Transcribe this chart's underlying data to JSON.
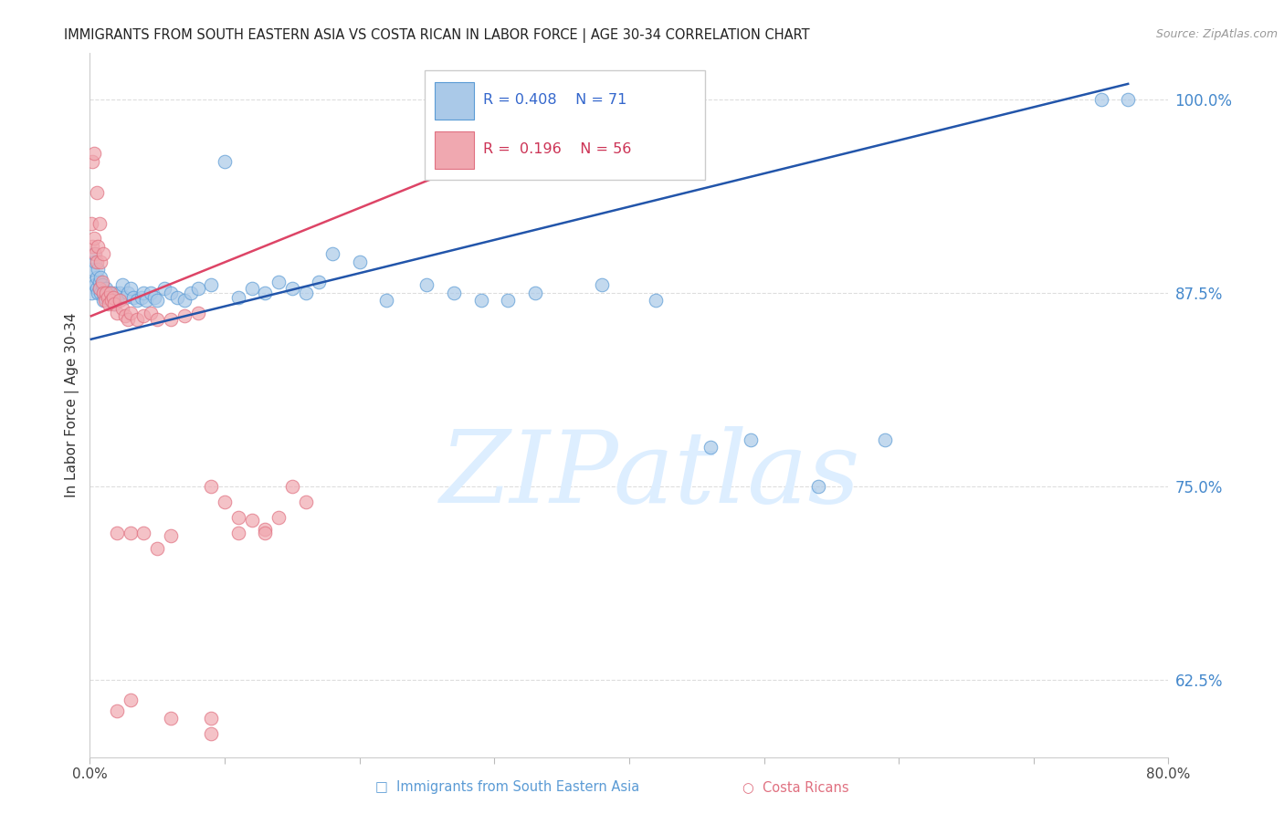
{
  "title": "IMMIGRANTS FROM SOUTH EASTERN ASIA VS COSTA RICAN IN LABOR FORCE | AGE 30-34 CORRELATION CHART",
  "source": "Source: ZipAtlas.com",
  "ylabel": "In Labor Force | Age 30-34",
  "xlim": [
    0.0,
    0.8
  ],
  "ylim": [
    0.575,
    1.03
  ],
  "yticks": [
    0.625,
    0.75,
    0.875,
    1.0
  ],
  "ytick_labels": [
    "62.5%",
    "75.0%",
    "87.5%",
    "100.0%"
  ],
  "xticks": [
    0.0,
    0.1,
    0.2,
    0.3,
    0.4,
    0.5,
    0.6,
    0.7,
    0.8
  ],
  "xtick_labels": [
    "0.0%",
    "",
    "",
    "",
    "",
    "",
    "",
    "",
    "80.0%"
  ],
  "blue_R": 0.408,
  "blue_N": 71,
  "pink_R": 0.196,
  "pink_N": 56,
  "blue_color": "#aac9e8",
  "pink_color": "#f0a8b0",
  "blue_edge_color": "#5b9bd5",
  "pink_edge_color": "#e07080",
  "blue_line_color": "#2255aa",
  "pink_line_color": "#dd4466",
  "watermark": "ZIPatlas",
  "watermark_color": "#ddeeff",
  "blue_x": [
    0.001,
    0.002,
    0.003,
    0.003,
    0.004,
    0.004,
    0.005,
    0.005,
    0.006,
    0.006,
    0.007,
    0.007,
    0.008,
    0.008,
    0.009,
    0.01,
    0.01,
    0.011,
    0.012,
    0.013,
    0.014,
    0.015,
    0.016,
    0.017,
    0.018,
    0.019,
    0.02,
    0.022,
    0.024,
    0.026,
    0.028,
    0.03,
    0.032,
    0.035,
    0.038,
    0.04,
    0.042,
    0.045,
    0.048,
    0.05,
    0.055,
    0.06,
    0.065,
    0.07,
    0.075,
    0.08,
    0.09,
    0.1,
    0.11,
    0.12,
    0.13,
    0.14,
    0.15,
    0.16,
    0.17,
    0.18,
    0.2,
    0.22,
    0.25,
    0.27,
    0.29,
    0.31,
    0.33,
    0.38,
    0.42,
    0.46,
    0.49,
    0.54,
    0.59,
    0.75,
    0.77
  ],
  "blue_y": [
    0.875,
    0.89,
    0.882,
    0.9,
    0.88,
    0.895,
    0.878,
    0.885,
    0.875,
    0.89,
    0.882,
    0.878,
    0.885,
    0.875,
    0.88,
    0.87,
    0.875,
    0.872,
    0.878,
    0.875,
    0.872,
    0.875,
    0.87,
    0.872,
    0.868,
    0.875,
    0.87,
    0.875,
    0.88,
    0.872,
    0.875,
    0.878,
    0.872,
    0.87,
    0.872,
    0.875,
    0.87,
    0.875,
    0.872,
    0.87,
    0.878,
    0.875,
    0.872,
    0.87,
    0.875,
    0.878,
    0.88,
    0.96,
    0.872,
    0.878,
    0.875,
    0.882,
    0.878,
    0.875,
    0.882,
    0.9,
    0.895,
    0.87,
    0.88,
    0.875,
    0.87,
    0.87,
    0.875,
    0.88,
    0.87,
    0.775,
    0.78,
    0.75,
    0.78,
    1.0,
    1.0
  ],
  "pink_x": [
    0.001,
    0.002,
    0.002,
    0.003,
    0.003,
    0.004,
    0.005,
    0.005,
    0.006,
    0.007,
    0.007,
    0.008,
    0.009,
    0.01,
    0.01,
    0.011,
    0.012,
    0.013,
    0.014,
    0.015,
    0.016,
    0.017,
    0.018,
    0.02,
    0.022,
    0.024,
    0.026,
    0.028,
    0.03,
    0.035,
    0.04,
    0.045,
    0.05,
    0.06,
    0.07,
    0.08,
    0.09,
    0.1,
    0.11,
    0.12,
    0.13,
    0.14,
    0.15,
    0.16,
    0.05,
    0.06,
    0.11,
    0.13,
    0.03,
    0.04,
    0.06,
    0.09,
    0.02,
    0.03,
    0.09,
    0.02
  ],
  "pink_y": [
    0.92,
    0.905,
    0.96,
    0.91,
    0.965,
    0.9,
    0.895,
    0.94,
    0.905,
    0.92,
    0.878,
    0.895,
    0.882,
    0.875,
    0.9,
    0.87,
    0.875,
    0.872,
    0.868,
    0.875,
    0.87,
    0.872,
    0.868,
    0.862,
    0.87,
    0.865,
    0.86,
    0.858,
    0.862,
    0.858,
    0.86,
    0.862,
    0.858,
    0.858,
    0.86,
    0.862,
    0.75,
    0.74,
    0.73,
    0.728,
    0.722,
    0.73,
    0.75,
    0.74,
    0.71,
    0.718,
    0.72,
    0.72,
    0.72,
    0.72,
    0.6,
    0.59,
    0.72,
    0.612,
    0.6,
    0.605
  ],
  "blue_trend_x": [
    0.001,
    0.77
  ],
  "blue_trend_y": [
    0.845,
    1.01
  ],
  "pink_trend_x": [
    0.001,
    0.4
  ],
  "pink_trend_y": [
    0.86,
    1.0
  ]
}
